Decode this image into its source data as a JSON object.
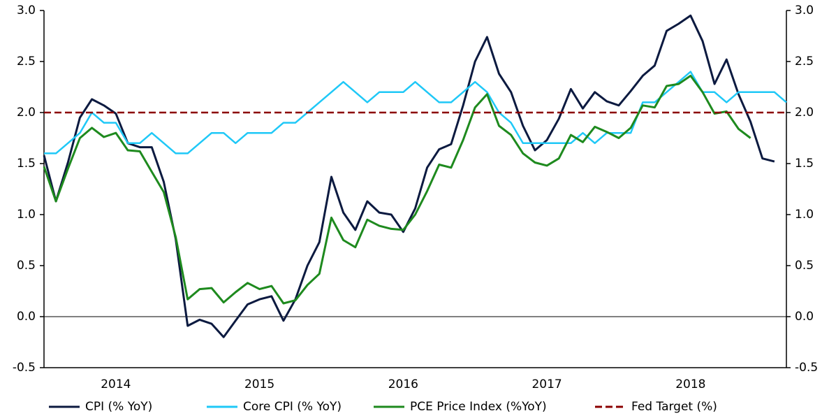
{
  "chart_data": {
    "type": "line",
    "categories": [
      null,
      null,
      null,
      null,
      null,
      null,
      "2014",
      null,
      null,
      null,
      null,
      null,
      null,
      null,
      null,
      null,
      null,
      null,
      "2015",
      null,
      null,
      null,
      null,
      null,
      null,
      null,
      null,
      null,
      null,
      null,
      "2016",
      null,
      null,
      null,
      null,
      null,
      null,
      null,
      null,
      null,
      null,
      null,
      "2017",
      null,
      null,
      null,
      null,
      null,
      null,
      null,
      null,
      null,
      null,
      null,
      "2018",
      null,
      null,
      null,
      null,
      null,
      null,
      null,
      null
    ],
    "series": [
      {
        "name": "CPI (% YoY)",
        "color": "#0c1a40",
        "values": [
          1.58,
          1.13,
          1.51,
          1.95,
          2.13,
          2.07,
          1.99,
          1.7,
          1.66,
          1.66,
          1.32,
          0.76,
          -0.09,
          -0.03,
          -0.07,
          -0.2,
          -0.04,
          0.12,
          0.17,
          0.2,
          -0.04,
          0.17,
          0.5,
          0.73,
          1.37,
          1.02,
          0.85,
          1.13,
          1.02,
          1.0,
          0.83,
          1.06,
          1.46,
          1.64,
          1.69,
          2.07,
          2.5,
          2.74,
          2.38,
          2.2,
          1.87,
          1.63,
          1.73,
          1.94,
          2.23,
          2.04,
          2.2,
          2.11,
          2.07,
          2.21,
          2.36,
          2.46,
          2.8,
          2.87,
          2.95,
          2.7,
          2.28,
          2.52,
          2.18,
          1.91,
          1.55,
          1.52,
          null
        ]
      },
      {
        "name": "Core CPI (% YoY)",
        "color": "#1fc8f7",
        "values": [
          1.6,
          1.6,
          1.7,
          1.8,
          2.0,
          1.9,
          1.9,
          1.7,
          1.7,
          1.8,
          1.7,
          1.6,
          1.6,
          1.7,
          1.8,
          1.8,
          1.7,
          1.8,
          1.8,
          1.8,
          1.9,
          1.9,
          2.0,
          2.1,
          2.2,
          2.3,
          2.2,
          2.1,
          2.2,
          2.2,
          2.2,
          2.3,
          2.2,
          2.1,
          2.1,
          2.2,
          2.3,
          2.2,
          2.0,
          1.9,
          1.7,
          1.7,
          1.7,
          1.7,
          1.7,
          1.8,
          1.7,
          1.8,
          1.8,
          1.8,
          2.1,
          2.1,
          2.2,
          2.3,
          2.4,
          2.2,
          2.2,
          2.1,
          2.2,
          2.2,
          2.2,
          2.2,
          2.1
        ]
      },
      {
        "name": "PCE Price Index (%YoY)",
        "color": "#1e8a1e",
        "values": [
          1.47,
          1.13,
          1.45,
          1.75,
          1.85,
          1.76,
          1.8,
          1.63,
          1.62,
          1.42,
          1.22,
          0.78,
          0.17,
          0.27,
          0.28,
          0.14,
          0.24,
          0.33,
          0.27,
          0.3,
          0.13,
          0.16,
          0.31,
          0.42,
          0.97,
          0.75,
          0.68,
          0.95,
          0.89,
          0.86,
          0.85,
          1.0,
          1.23,
          1.49,
          1.46,
          1.73,
          2.05,
          2.18,
          1.87,
          1.78,
          1.6,
          1.51,
          1.48,
          1.55,
          1.78,
          1.71,
          1.86,
          1.81,
          1.75,
          1.85,
          2.07,
          2.05,
          2.26,
          2.28,
          2.36,
          2.2,
          1.99,
          2.01,
          1.84,
          1.75,
          null,
          null,
          null
        ]
      }
    ],
    "reference_line": {
      "name": "Fed Target (%)",
      "value": 2.0,
      "color": "#8b0000",
      "dashed": true
    },
    "ylim": [
      -0.5,
      3.0
    ],
    "yticks": [
      {
        "value": -0.5,
        "label": "-0.5"
      },
      {
        "value": 0,
        "label": "0.0"
      },
      {
        "value": 0.5,
        "label": "0.5"
      },
      {
        "value": 1,
        "label": "1.0"
      },
      {
        "value": 1.5,
        "label": "1.5"
      },
      {
        "value": 2,
        "label": "2.0"
      },
      {
        "value": 2.5,
        "label": "2.5"
      },
      {
        "value": 3,
        "label": "3.0"
      }
    ],
    "y2lim": [
      -0.5,
      3.0
    ],
    "y2ticks": [
      {
        "value": -0.5,
        "label": "-0.5"
      },
      {
        "value": 0,
        "label": "0.0"
      },
      {
        "value": 0.5,
        "label": "0.5"
      },
      {
        "value": 1,
        "label": "1.0"
      },
      {
        "value": 1.5,
        "label": "1.5"
      },
      {
        "value": 2,
        "label": "2.0"
      },
      {
        "value": 2.5,
        "label": "2.5"
      },
      {
        "value": 3,
        "label": "3.0"
      }
    ],
    "legend": "bottom"
  }
}
